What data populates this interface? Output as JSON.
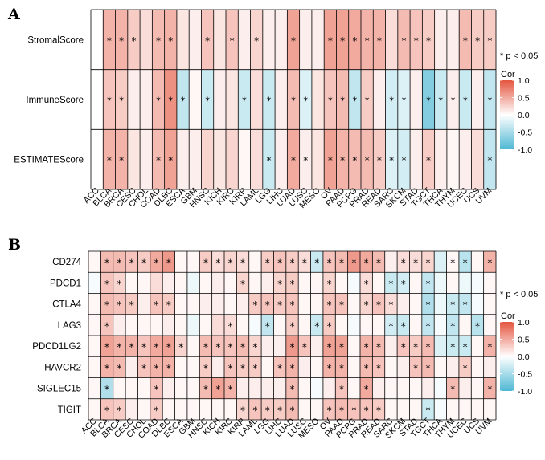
{
  "colors": {
    "low": "#4fb8d3",
    "mid": "#ffffff",
    "high": "#e4553f"
  },
  "cancers": [
    "ACC",
    "BLCA",
    "BRCA",
    "CESC",
    "CHOL",
    "COAD",
    "DLBC",
    "ESCA",
    "GBM",
    "HNSC",
    "KICH",
    "KIRC",
    "KIRP",
    "LAML",
    "LGG",
    "LIHC",
    "LUAD",
    "LUSC",
    "MESO",
    "OV",
    "PAAD",
    "PCPG",
    "PRAD",
    "READ",
    "SARC",
    "SKCM",
    "STAD",
    "TGCT",
    "THCA",
    "THYM",
    "UCEC",
    "UCS",
    "UVM"
  ],
  "chart_data": [
    {
      "panel": "A",
      "type": "heatmap",
      "rows": [
        "StromalScore",
        "ImmuneScore",
        "ESTIMATEScore"
      ],
      "values": [
        [
          0.0,
          0.45,
          0.45,
          0.3,
          0.2,
          0.4,
          0.45,
          0.15,
          0.1,
          0.35,
          0.15,
          0.35,
          0.1,
          0.25,
          0.1,
          0.1,
          0.55,
          0.1,
          0.1,
          0.55,
          0.55,
          0.5,
          0.45,
          0.45,
          0.2,
          0.4,
          0.35,
          0.3,
          0.1,
          0.1,
          0.4,
          0.3,
          0.3
        ],
        [
          0.0,
          0.35,
          0.3,
          0.1,
          0.1,
          0.4,
          0.65,
          -0.35,
          0.05,
          -0.3,
          0.1,
          0.15,
          -0.3,
          0.2,
          -0.3,
          0.1,
          0.4,
          -0.2,
          0.15,
          0.35,
          0.4,
          -0.35,
          0.3,
          0.1,
          -0.25,
          -0.2,
          0.1,
          -0.7,
          -0.3,
          0.1,
          -0.3,
          0.1,
          -0.35
        ],
        [
          0.0,
          0.45,
          0.45,
          0.15,
          0.1,
          0.4,
          0.55,
          0.1,
          0.1,
          0.25,
          0.15,
          0.25,
          0.05,
          0.2,
          -0.3,
          0.1,
          0.5,
          0.1,
          0.15,
          0.55,
          0.45,
          0.4,
          0.4,
          0.3,
          -0.2,
          -0.25,
          0.1,
          0.3,
          0.1,
          0.05,
          0.1,
          0.2,
          -0.35
        ]
      ],
      "stars": [
        [
          0,
          1,
          1,
          1,
          0,
          1,
          1,
          0,
          0,
          1,
          0,
          1,
          0,
          1,
          0,
          0,
          1,
          0,
          0,
          1,
          1,
          1,
          1,
          1,
          0,
          1,
          1,
          1,
          0,
          0,
          1,
          1,
          1
        ],
        [
          0,
          1,
          1,
          0,
          0,
          1,
          1,
          1,
          0,
          1,
          0,
          0,
          1,
          0,
          1,
          0,
          1,
          1,
          0,
          1,
          1,
          1,
          1,
          0,
          1,
          1,
          0,
          1,
          1,
          1,
          1,
          0,
          1
        ],
        [
          0,
          1,
          1,
          0,
          0,
          1,
          1,
          0,
          0,
          0,
          0,
          0,
          0,
          0,
          1,
          0,
          1,
          1,
          0,
          1,
          1,
          1,
          1,
          1,
          1,
          1,
          0,
          1,
          0,
          0,
          0,
          0,
          1
        ]
      ],
      "note": "* p < 0.05",
      "legend": {
        "title": "Cor",
        "ticks": [
          "1.0",
          "0.5",
          "0.0",
          "-0.5",
          "-1.0"
        ]
      }
    },
    {
      "panel": "B",
      "type": "heatmap",
      "rows": [
        "CD274",
        "PDCD1",
        "CTLA4",
        "LAG3",
        "PDCD1LG2",
        "HAVCR2",
        "SIGLEC15",
        "TIGIT"
      ],
      "values": [
        [
          0.05,
          0.4,
          0.4,
          0.35,
          0.3,
          0.5,
          0.6,
          0.05,
          0.05,
          0.3,
          0.2,
          0.25,
          0.2,
          0.05,
          0.3,
          0.35,
          0.3,
          0.2,
          -0.3,
          0.35,
          0.4,
          0.6,
          0.5,
          0.4,
          0.1,
          0.2,
          0.2,
          0.25,
          -0.2,
          0.05,
          -0.4,
          0.05,
          0.45
        ],
        [
          -0.05,
          0.35,
          0.25,
          0.05,
          0.05,
          0.2,
          0.1,
          0.05,
          -0.1,
          0.05,
          0.1,
          0.05,
          0.25,
          0.05,
          0.1,
          0.25,
          0.3,
          0.05,
          0.05,
          0.25,
          0.05,
          -0.05,
          0.2,
          0.05,
          -0.3,
          -0.25,
          0.05,
          -0.35,
          -0.1,
          0.05,
          -0.1,
          -0.05,
          0.05
        ],
        [
          0.05,
          0.4,
          0.35,
          0.3,
          0.1,
          0.35,
          0.3,
          0.05,
          0.05,
          0.1,
          0.1,
          0.05,
          0.1,
          0.3,
          0.35,
          0.3,
          0.35,
          0.05,
          0.05,
          0.35,
          0.35,
          0.05,
          0.25,
          0.35,
          0.2,
          0.1,
          0.05,
          -0.45,
          -0.1,
          -0.3,
          -0.35,
          -0.05,
          0.05
        ],
        [
          0.05,
          0.35,
          0.1,
          0.05,
          0.05,
          0.05,
          0.1,
          0.05,
          -0.1,
          0.05,
          0.2,
          0.2,
          0.05,
          -0.05,
          -0.35,
          0.05,
          0.3,
          0.05,
          -0.3,
          0.3,
          0.05,
          -0.05,
          0.05,
          0.05,
          -0.25,
          -0.3,
          0.05,
          -0.35,
          -0.05,
          -0.35,
          0.05,
          -0.4,
          0.05
        ],
        [
          0.05,
          0.55,
          0.45,
          0.45,
          0.35,
          0.5,
          0.55,
          0.25,
          0.05,
          0.4,
          0.35,
          0.35,
          0.4,
          0.25,
          0.1,
          0.1,
          0.6,
          0.35,
          0.1,
          0.55,
          0.55,
          0.05,
          0.45,
          0.4,
          0.1,
          0.35,
          0.3,
          0.4,
          -0.2,
          -0.3,
          -0.3,
          0.05,
          0.45
        ],
        [
          0.05,
          0.45,
          0.4,
          0.1,
          0.35,
          0.45,
          0.45,
          0.05,
          0.05,
          0.3,
          0.1,
          0.35,
          0.3,
          0.3,
          0.05,
          0.35,
          0.45,
          0.1,
          0.05,
          0.45,
          0.45,
          0.05,
          0.4,
          0.35,
          0.05,
          0.1,
          0.35,
          0.4,
          0.05,
          0.1,
          0.3,
          0.05,
          0.1
        ],
        [
          0.05,
          -0.45,
          0.05,
          0.05,
          0.05,
          0.35,
          0.1,
          0.05,
          0.05,
          0.4,
          0.55,
          0.45,
          0.1,
          0.1,
          0.1,
          0.1,
          0.4,
          0.05,
          -0.05,
          0.1,
          0.35,
          0.05,
          0.5,
          0.1,
          0.05,
          0.05,
          0.05,
          0.1,
          -0.05,
          0.4,
          0.1,
          0.05,
          0.45
        ],
        [
          0.05,
          0.35,
          0.3,
          0.1,
          0.05,
          0.3,
          0.05,
          0.05,
          0.05,
          0.05,
          0.05,
          0.05,
          0.25,
          0.35,
          0.3,
          0.3,
          0.4,
          0.05,
          0.05,
          0.35,
          0.4,
          0.35,
          0.35,
          0.3,
          0.05,
          0.05,
          0.05,
          -0.3,
          -0.05,
          0.05,
          0.05,
          0.05,
          0.05
        ]
      ],
      "stars": [
        [
          0,
          1,
          1,
          1,
          1,
          1,
          1,
          0,
          0,
          1,
          1,
          1,
          1,
          0,
          1,
          1,
          1,
          1,
          1,
          1,
          1,
          1,
          1,
          1,
          0,
          1,
          1,
          1,
          0,
          1,
          1,
          0,
          1
        ],
        [
          0,
          1,
          1,
          0,
          0,
          0,
          0,
          0,
          0,
          0,
          0,
          0,
          1,
          0,
          0,
          1,
          1,
          0,
          0,
          1,
          0,
          0,
          1,
          0,
          1,
          1,
          0,
          1,
          0,
          0,
          0,
          0,
          0
        ],
        [
          0,
          1,
          1,
          1,
          0,
          1,
          1,
          0,
          0,
          0,
          0,
          0,
          0,
          1,
          1,
          1,
          1,
          0,
          0,
          1,
          1,
          0,
          1,
          1,
          1,
          0,
          0,
          1,
          0,
          1,
          1,
          0,
          0
        ],
        [
          0,
          1,
          0,
          0,
          0,
          0,
          0,
          0,
          0,
          0,
          0,
          1,
          0,
          0,
          1,
          0,
          1,
          0,
          1,
          1,
          0,
          0,
          0,
          0,
          1,
          1,
          0,
          1,
          0,
          1,
          0,
          1,
          0
        ],
        [
          0,
          1,
          1,
          1,
          1,
          1,
          1,
          1,
          0,
          1,
          1,
          1,
          1,
          1,
          0,
          0,
          1,
          1,
          0,
          1,
          1,
          0,
          1,
          1,
          0,
          1,
          1,
          1,
          0,
          1,
          1,
          0,
          1
        ],
        [
          0,
          1,
          1,
          0,
          1,
          1,
          1,
          0,
          0,
          1,
          0,
          1,
          1,
          1,
          0,
          1,
          1,
          0,
          0,
          1,
          1,
          0,
          1,
          1,
          0,
          0,
          1,
          1,
          0,
          0,
          1,
          0,
          0
        ],
        [
          0,
          1,
          0,
          0,
          0,
          1,
          0,
          0,
          0,
          1,
          1,
          1,
          0,
          0,
          0,
          0,
          1,
          0,
          0,
          0,
          1,
          0,
          1,
          0,
          0,
          0,
          0,
          0,
          0,
          1,
          0,
          0,
          1
        ],
        [
          0,
          1,
          1,
          0,
          0,
          1,
          0,
          0,
          0,
          0,
          0,
          0,
          1,
          1,
          1,
          1,
          1,
          0,
          0,
          1,
          1,
          1,
          1,
          1,
          0,
          0,
          0,
          1,
          0,
          0,
          0,
          0,
          0
        ]
      ],
      "note": "* p < 0.05",
      "legend": {
        "title": "Cor",
        "ticks": [
          "1.0",
          "0.5",
          "0.0",
          "-0.5",
          "-1.0"
        ]
      }
    }
  ]
}
